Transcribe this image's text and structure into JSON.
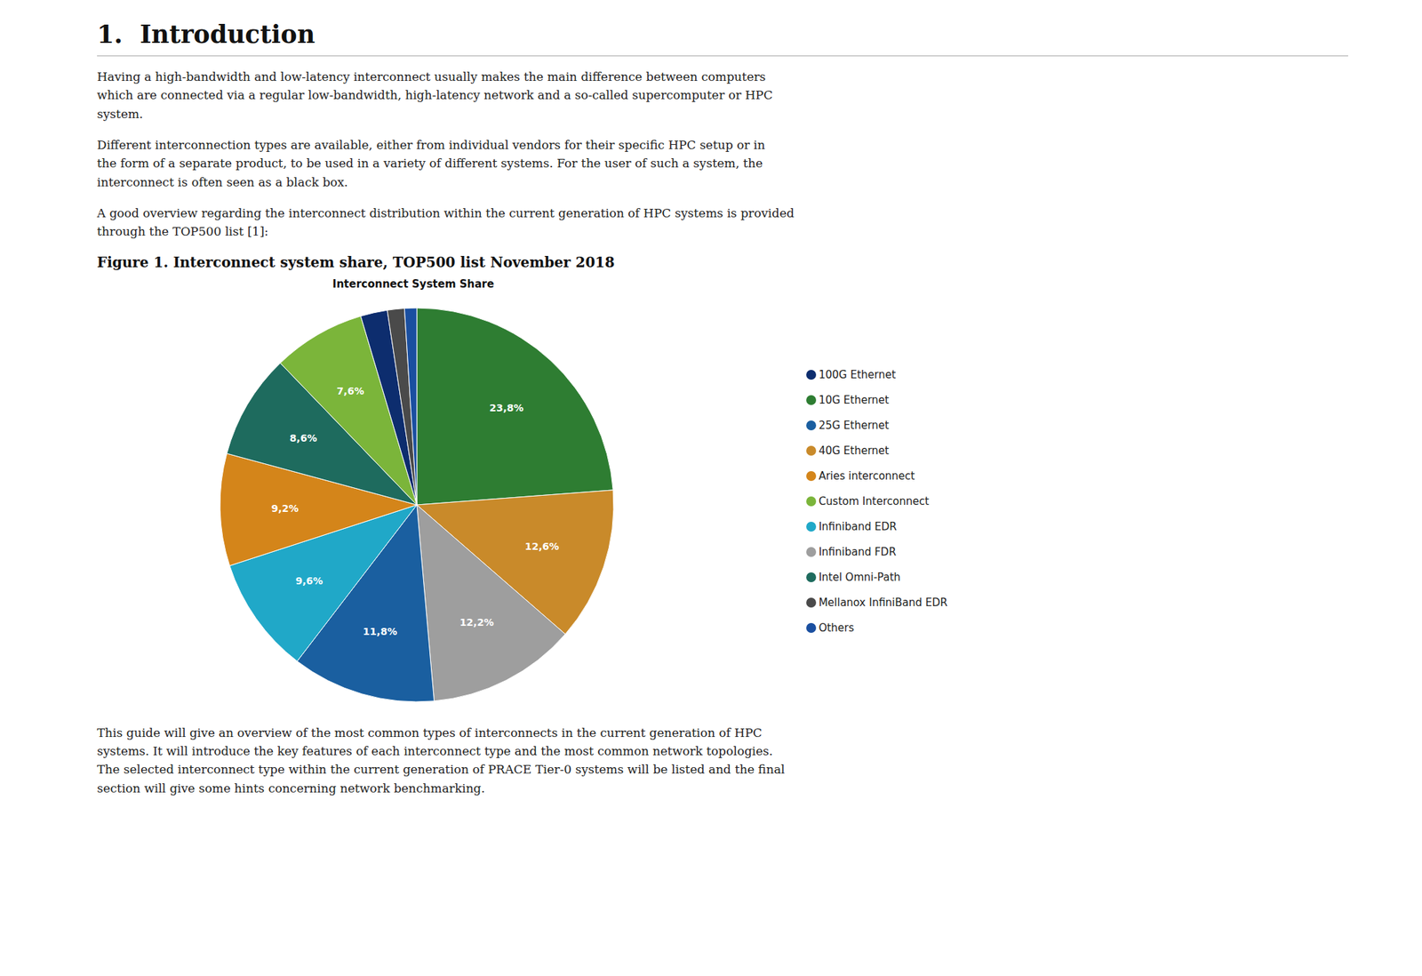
{
  "title": "1.  Introduction",
  "annotations": [
    "Having a high-bandwidth and low-latency interconnect usually makes the main difference between computers\nwhich are connected via a regular low-bandwidth, high-latency network and a so-called supercomputer or HPC\nsystem.",
    "Different interconnection types are available, either from individual vendors for their specific HPC setup or in\nthe form of a separate product, to be used in a variety of different systems. For the user of such a system, the\ninterconnect is often seen as a black box.",
    "A good overview regarding the interconnect distribution within the current generation of HPC systems is provided\nthrough the TOP500 list [1]:"
  ],
  "figure_title": "Figure 1. Interconnect system share, TOP500 list November 2018",
  "annotations_below": [
    "This guide will give an overview of the most common types of interconnects in the current generation of HPC\nsystems. It will introduce the key features of each interconnect type and the most common network topologies.\nThe selected interconnect type within the current generation of PRACE Tier-0 systems will be listed and the final\nsection will give some hints concerning network benchmarking."
  ],
  "chart_data": {
    "type": "pie",
    "title": "Interconnect System Share",
    "categories": [
      "10G Ethernet",
      "40G Ethernet",
      "Infiniband FDR",
      "25G Ethernet",
      "Infiniband EDR",
      "Aries interconnect",
      "Intel Omni-Path",
      "Custom Interconnect",
      "100G Ethernet",
      "Mellanox InfiniBand EDR",
      "Others"
    ],
    "values": [
      23.8,
      12.6,
      12.2,
      11.8,
      9.6,
      9.2,
      8.6,
      7.6,
      2.2,
      1.4,
      1.0
    ],
    "value_labels": [
      "23,8%",
      "12,6%",
      "12,2%",
      "11,8%",
      "9,6%",
      "9,2%",
      "8,6%",
      "7,6%",
      null,
      null,
      null
    ],
    "colors": [
      "#2e7d32",
      "#c98a2a",
      "#9e9e9e",
      "#1a5fa0",
      "#20a8c8",
      "#d4851a",
      "#1e6b5e",
      "#7bb53a",
      "#0d2d6e",
      "#4a4a4a",
      "#1a4fa0"
    ],
    "data_labels": true,
    "legend": "right"
  }
}
